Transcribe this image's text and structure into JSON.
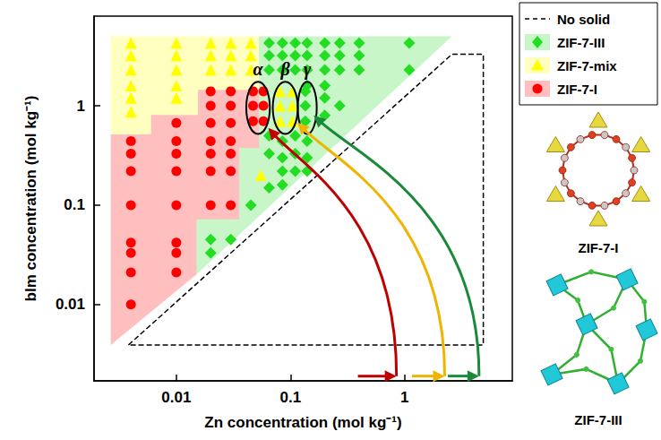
{
  "chart_data": {
    "type": "scatter",
    "x_label": "Zn concentration (mol kg⁻¹)",
    "y_label": "bIm concentration (mol kg⁻¹)",
    "log": true,
    "grid": false,
    "legend": "right",
    "xlim": [
      0.0019,
      8.8
    ],
    "ylim": [
      0.0017,
      8
    ],
    "xticks": [
      0.01,
      0.1,
      1
    ],
    "yticks": [
      0.01,
      0.1,
      1
    ],
    "series": [
      {
        "name": "No solid",
        "type": "line",
        "line_style": "dashed",
        "color": "#000000",
        "values": [
          [
            0.0038,
            0.0039
          ],
          [
            2.6,
            3.3
          ],
          [
            4.9,
            3.3
          ],
          [
            4.9,
            0.0039
          ],
          [
            0.0038,
            0.0039
          ]
        ]
      },
      {
        "name": "ZIF-7-III",
        "type": "scatter",
        "marker": "diamond",
        "color": "#22dd22",
        "values": [
          [
            0.065,
            4.3
          ],
          [
            0.085,
            4.3
          ],
          [
            0.11,
            4.3
          ],
          [
            0.14,
            4.3
          ],
          [
            0.2,
            4.3
          ],
          [
            0.27,
            4.3
          ],
          [
            0.4,
            4.3
          ],
          [
            0.065,
            3.2
          ],
          [
            0.085,
            3.2
          ],
          [
            0.11,
            3.2
          ],
          [
            0.14,
            3.2
          ],
          [
            0.2,
            3.2
          ],
          [
            0.27,
            3.2
          ],
          [
            0.4,
            3.2
          ],
          [
            0.065,
            2.3
          ],
          [
            0.085,
            2.3
          ],
          [
            0.11,
            2.3
          ],
          [
            0.14,
            2.3
          ],
          [
            0.2,
            2.3
          ],
          [
            0.27,
            2.3
          ],
          [
            0.4,
            2.3
          ],
          [
            0.14,
            1.6
          ],
          [
            0.2,
            1.6
          ],
          [
            1.1,
            4.3
          ],
          [
            1.1,
            2.3
          ],
          [
            0.135,
            1.4
          ],
          [
            0.135,
            1
          ],
          [
            0.135,
            0.7
          ],
          [
            0.2,
            1.2
          ],
          [
            0.27,
            1
          ],
          [
            0.2,
            0.8
          ],
          [
            0.065,
            0.5
          ],
          [
            0.085,
            0.44
          ],
          [
            0.11,
            0.5
          ],
          [
            0.14,
            0.44
          ],
          [
            0.065,
            0.33
          ],
          [
            0.085,
            0.3
          ],
          [
            0.11,
            0.33
          ],
          [
            0.14,
            0.3
          ],
          [
            0.085,
            0.22
          ],
          [
            0.11,
            0.22
          ],
          [
            0.14,
            0.22
          ],
          [
            0.085,
            0.16
          ],
          [
            0.065,
            0.15
          ],
          [
            0.045,
            0.1
          ],
          [
            0.02,
            0.045
          ],
          [
            0.03,
            0.045
          ],
          [
            0.02,
            0.033
          ]
        ],
        "region": [
          [
            0.053,
            5
          ],
          [
            2.6,
            5
          ],
          [
            0.015,
            0.02
          ],
          [
            0.015,
            0.072
          ],
          [
            0.0356,
            0.072
          ],
          [
            0.0356,
            0.377
          ],
          [
            0.053,
            0.377
          ]
        ]
      },
      {
        "name": "ZIF-7-mix",
        "type": "scatter",
        "marker": "triangle",
        "color": "#ffff00",
        "values": [
          [
            0.004,
            4.3
          ],
          [
            0.004,
            3.2
          ],
          [
            0.004,
            2.3
          ],
          [
            0.004,
            1.6
          ],
          [
            0.004,
            1.2
          ],
          [
            0.004,
            0.87
          ],
          [
            0.01,
            4.3
          ],
          [
            0.01,
            3.2
          ],
          [
            0.01,
            2.3
          ],
          [
            0.01,
            1.6
          ],
          [
            0.01,
            1.2
          ],
          [
            0.02,
            4.3
          ],
          [
            0.02,
            3.2
          ],
          [
            0.02,
            2.3
          ],
          [
            0.03,
            4.3
          ],
          [
            0.03,
            3.2
          ],
          [
            0.03,
            2.3
          ],
          [
            0.045,
            4.3
          ],
          [
            0.045,
            3.2
          ],
          [
            0.045,
            2.3
          ],
          [
            0.081,
            1.4
          ],
          [
            0.081,
            1
          ],
          [
            0.081,
            0.7
          ],
          [
            0.104,
            1.4
          ],
          [
            0.104,
            1
          ],
          [
            0.104,
            0.7
          ],
          [
            0.055,
            0.2
          ]
        ],
        "region": [
          [
            0.00266,
            5
          ],
          [
            0.053,
            5
          ],
          [
            0.053,
            1.45
          ],
          [
            0.0155,
            1.45
          ],
          [
            0.0155,
            0.81
          ],
          [
            0.006,
            0.81
          ],
          [
            0.006,
            0.515
          ],
          [
            0.00266,
            0.515
          ]
        ]
      },
      {
        "name": "ZIF-7-I",
        "type": "scatter",
        "marker": "circle",
        "color": "#ff0000",
        "values": [
          [
            0.004,
            0.44
          ],
          [
            0.004,
            0.33
          ],
          [
            0.004,
            0.22
          ],
          [
            0.004,
            0.1
          ],
          [
            0.004,
            0.042
          ],
          [
            0.004,
            0.033
          ],
          [
            0.004,
            0.021
          ],
          [
            0.004,
            0.01
          ],
          [
            0.01,
            0.67
          ],
          [
            0.01,
            0.44
          ],
          [
            0.01,
            0.33
          ],
          [
            0.01,
            0.22
          ],
          [
            0.01,
            0.1
          ],
          [
            0.01,
            0.042
          ],
          [
            0.01,
            0.033
          ],
          [
            0.01,
            0.021
          ],
          [
            0.02,
            1.4
          ],
          [
            0.02,
            1
          ],
          [
            0.02,
            0.67
          ],
          [
            0.02,
            0.44
          ],
          [
            0.02,
            0.33
          ],
          [
            0.02,
            0.22
          ],
          [
            0.02,
            0.1
          ],
          [
            0.03,
            1.4
          ],
          [
            0.03,
            1
          ],
          [
            0.03,
            0.67
          ],
          [
            0.03,
            0.44
          ],
          [
            0.03,
            0.33
          ],
          [
            0.03,
            0.22
          ],
          [
            0.03,
            0.1
          ],
          [
            0.047,
            1.4
          ],
          [
            0.047,
            1
          ],
          [
            0.047,
            0.7
          ],
          [
            0.058,
            1.4
          ],
          [
            0.058,
            1
          ],
          [
            0.058,
            0.7
          ]
        ],
        "region": [
          [
            0.00266,
            0.0039
          ],
          [
            0.00266,
            0.515
          ],
          [
            0.006,
            0.515
          ],
          [
            0.006,
            0.81
          ],
          [
            0.0155,
            0.81
          ],
          [
            0.0155,
            1.45
          ],
          [
            0.053,
            1.45
          ],
          [
            0.053,
            0.377
          ],
          [
            0.0356,
            0.377
          ],
          [
            0.0356,
            0.072
          ],
          [
            0.015,
            0.072
          ],
          [
            0.015,
            0.02
          ]
        ]
      }
    ],
    "groups": [
      {
        "label": "α",
        "xlim": [
          0.041,
          0.066
        ],
        "ylim": [
          0.52,
          1.75
        ]
      },
      {
        "label": "β",
        "xlim": [
          0.07,
          0.116
        ],
        "ylim": [
          0.52,
          1.75
        ]
      },
      {
        "label": "γ",
        "xlim": [
          0.116,
          0.17
        ],
        "ylim": [
          0.52,
          1.75
        ]
      }
    ],
    "arrows": [
      {
        "color": "#c00000",
        "start": [
          0.39,
          0.0019
        ],
        "corner": [
          0.85,
          0.0019
        ],
        "end": [
          0.064,
          0.6
        ]
      },
      {
        "color": "#f0b400",
        "start": [
          1.16,
          0.0019
        ],
        "corner": [
          2.25,
          0.0019
        ],
        "end": [
          0.115,
          0.68
        ]
      },
      {
        "color": "#1a8a3a",
        "start": [
          2.4,
          0.0019
        ],
        "corner": [
          4.5,
          0.0019
        ],
        "end": [
          0.16,
          0.8
        ]
      }
    ],
    "structure_labels": [
      "ZIF-7-I",
      "ZIF-7-III"
    ]
  }
}
